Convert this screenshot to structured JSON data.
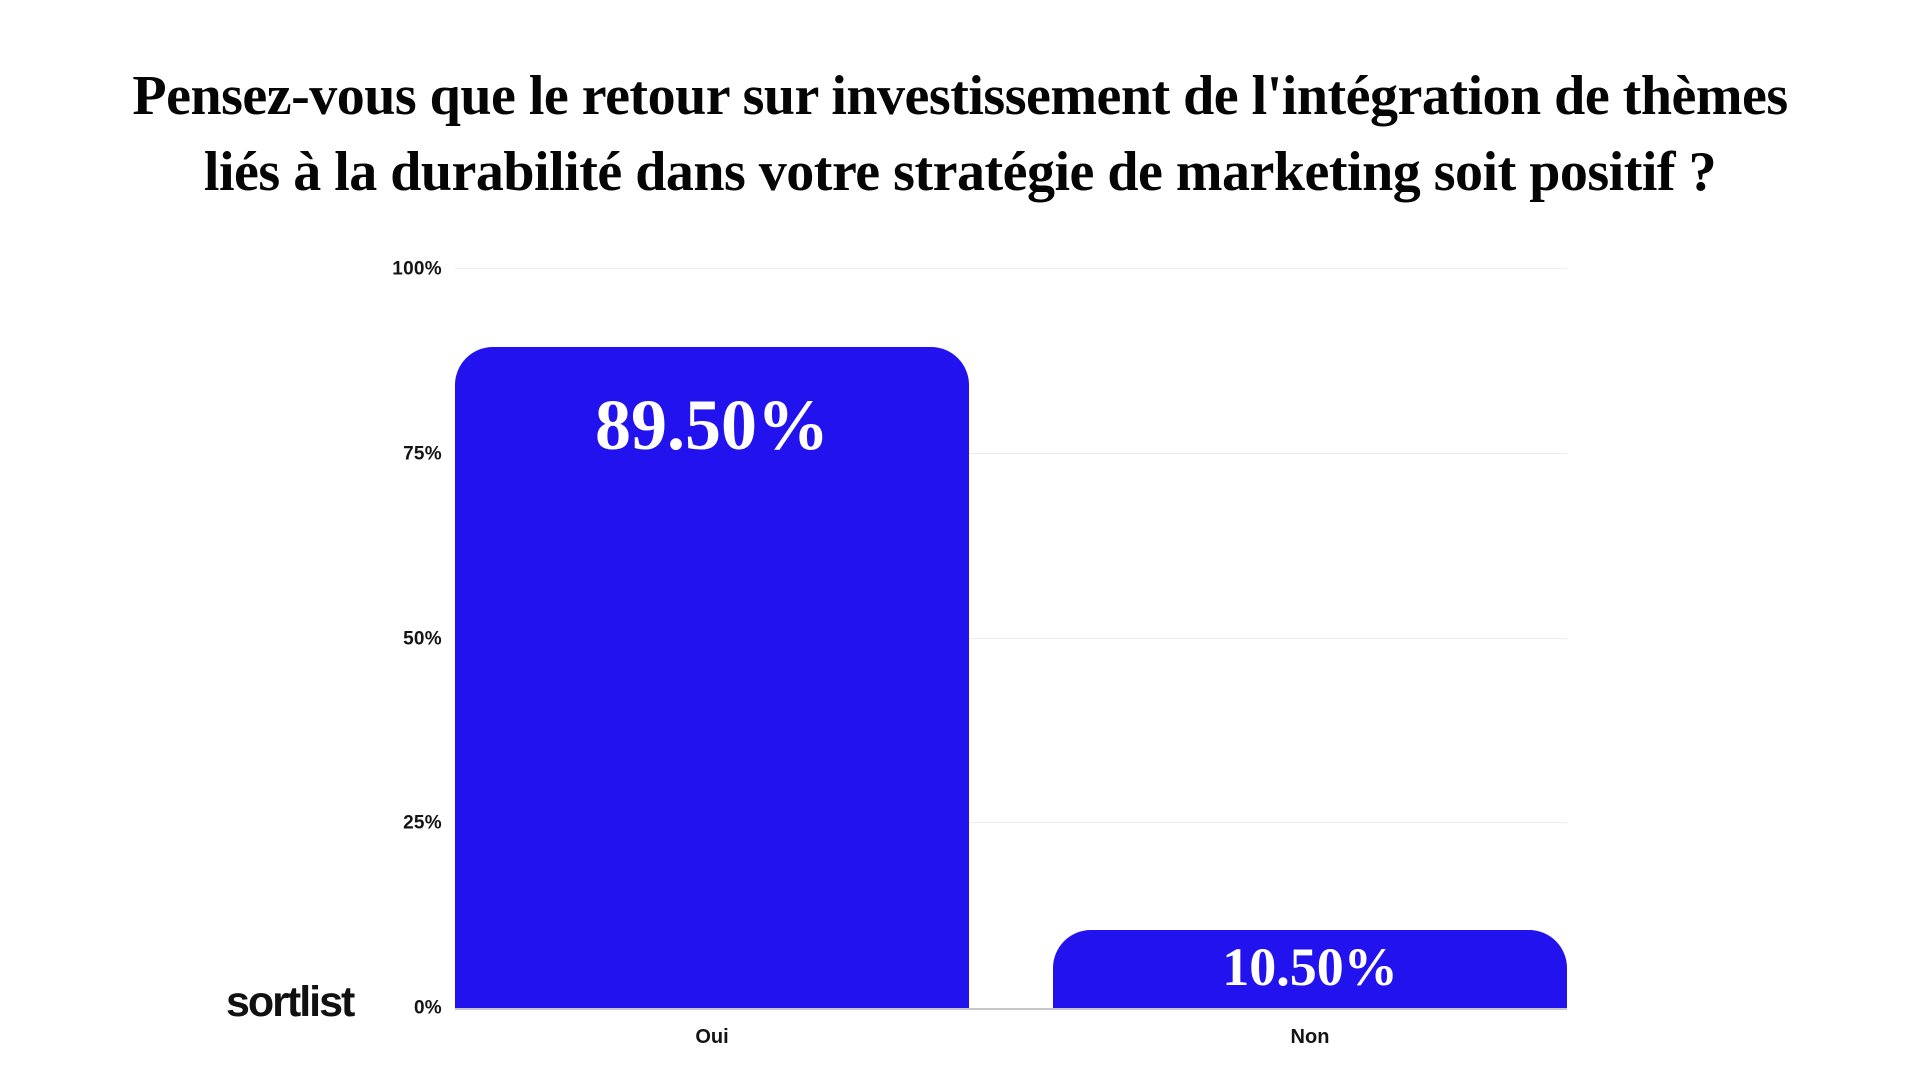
{
  "title": "Pensez-vous que le retour sur investissement de l'intégration de thèmes liés à la durabilité dans votre stratégie de marketing soit positif ?",
  "title_lines": [
    "Pensez-vous que le retour sur investissement de l'intégration de thèmes",
    "liés à la durabilité dans votre stratégie de marketing soit positif ?"
  ],
  "footer": {
    "logo_text": "sortlist"
  },
  "colors": {
    "bar": "#2112ee",
    "gridline": "#ececec",
    "axis_line": "#c7c7c7",
    "title_text": "#050505",
    "tick_text": "#141414",
    "value_label_text": "#ffffff",
    "background": "#ffffff"
  },
  "chart_data": {
    "type": "bar",
    "title": "Pensez-vous que le retour sur investissement de l'intégration de thèmes liés à la durabilité dans votre stratégie de marketing soit positif ?",
    "categories": [
      "Oui",
      "Non"
    ],
    "values": [
      89.5,
      10.5
    ],
    "value_labels": [
      "89.50%",
      "10.50%"
    ],
    "xlabel": "",
    "ylabel": "",
    "ylim": [
      0,
      100
    ],
    "yticks": [
      0,
      25,
      50,
      75,
      100
    ],
    "ytick_labels": [
      "0%",
      "25%",
      "50%",
      "75%",
      "100%"
    ],
    "grid": true,
    "legend": false,
    "bar_color": "#2112ee",
    "source_brand": "sortlist"
  }
}
